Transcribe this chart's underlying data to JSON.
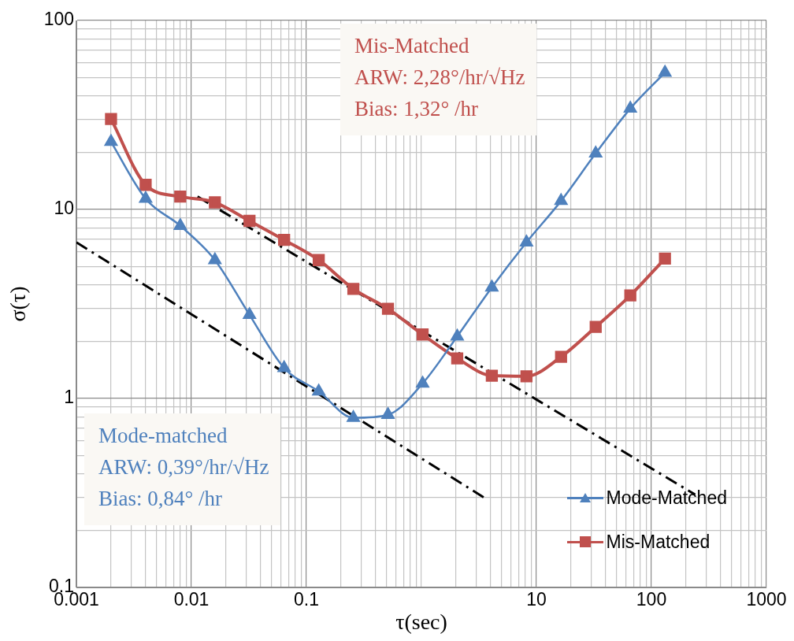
{
  "chart_data": {
    "type": "line",
    "xlabel": "τ(sec)",
    "ylabel": "σ(τ)",
    "log": "xy",
    "grid": true,
    "legend": "bottom right",
    "x": [
      0.002,
      0.004,
      0.008,
      0.016,
      0.032,
      0.064,
      0.128,
      0.256,
      0.512,
      1.024,
      2.048,
      4.096,
      8.192,
      16.38,
      32.77,
      65.54,
      131.1
    ],
    "series": [
      {
        "name": "Mode-Matched",
        "color": "#4f81bd",
        "marker": "triangle",
        "values": [
          22.8,
          11.4,
          8.2,
          5.4,
          2.77,
          1.45,
          1.09,
          0.79,
          0.82,
          1.2,
          2.13,
          3.87,
          6.7,
          11.1,
          19.8,
          34.2,
          53
        ]
      },
      {
        "name": "Mis-Matched",
        "color": "#c0504d",
        "marker": "square",
        "values": [
          30.1,
          13.5,
          11.7,
          10.9,
          8.7,
          6.9,
          5.4,
          3.8,
          2.98,
          2.18,
          1.63,
          1.32,
          1.31,
          1.66,
          2.39,
          3.51,
          5.5
        ]
      },
      {
        "type": "line",
        "color": "#000000",
        "marker": "none",
        "line_style": "dashed",
        "x": [
          0.001,
          3.47
        ],
        "values": [
          6.7,
          0.3
        ]
      },
      {
        "type": "line",
        "color": "#000000",
        "marker": "none",
        "line_style": "dashed",
        "x": [
          0.0113,
          240
        ],
        "values": [
          11.7,
          0.31
        ]
      }
    ],
    "xlim": [
      0.001,
      1000
    ],
    "xticks": [
      0.001,
      {
        "value": 0.002,
        "label": null
      },
      {
        "value": 0.003,
        "label": null
      },
      {
        "value": 0.004,
        "label": null
      },
      {
        "value": 0.005,
        "label": null
      },
      {
        "value": 0.006,
        "label": null
      },
      {
        "value": 0.007,
        "label": null
      },
      {
        "value": 0.008,
        "label": null
      },
      {
        "value": 0.009,
        "label": null
      },
      0.01,
      {
        "value": 0.02,
        "label": null
      },
      {
        "value": 0.03,
        "label": null
      },
      {
        "value": 0.04,
        "label": null
      },
      {
        "value": 0.05,
        "label": null
      },
      {
        "value": 0.06,
        "label": null
      },
      {
        "value": 0.07,
        "label": null
      },
      {
        "value": 0.08,
        "label": null
      },
      {
        "value": 0.09,
        "label": null
      },
      0.1,
      {
        "value": 0.2,
        "label": null
      },
      {
        "value": 0.3,
        "label": null
      },
      {
        "value": 0.4,
        "label": null
      },
      {
        "value": 0.5,
        "label": null
      },
      {
        "value": 0.6,
        "label": null
      },
      {
        "value": 0.7,
        "label": null
      },
      {
        "value": 0.8,
        "label": null
      },
      {
        "value": 0.9,
        "label": null
      },
      {
        "value": 1,
        "label": null
      },
      {
        "value": 2,
        "label": null
      },
      {
        "value": 3,
        "label": null
      },
      {
        "value": 4,
        "label": null
      },
      {
        "value": 5,
        "label": null
      },
      {
        "value": 6,
        "label": null
      },
      {
        "value": 7,
        "label": null
      },
      {
        "value": 8,
        "label": null
      },
      {
        "value": 9,
        "label": null
      },
      10,
      {
        "value": 20,
        "label": null
      },
      {
        "value": 30,
        "label": null
      },
      {
        "value": 40,
        "label": null
      },
      {
        "value": 50,
        "label": null
      },
      {
        "value": 60,
        "label": null
      },
      {
        "value": 70,
        "label": null
      },
      {
        "value": 80,
        "label": null
      },
      {
        "value": 90,
        "label": null
      },
      100,
      {
        "value": 200,
        "label": null
      },
      {
        "value": 300,
        "label": null
      },
      {
        "value": 400,
        "label": null
      },
      {
        "value": 500,
        "label": null
      },
      {
        "value": 600,
        "label": null
      },
      {
        "value": 700,
        "label": null
      },
      {
        "value": 800,
        "label": null
      },
      {
        "value": 900,
        "label": null
      },
      1000
    ],
    "ylim": [
      0.1,
      100
    ],
    "yticks": [
      0.1,
      {
        "value": 0.2,
        "label": null
      },
      {
        "value": 0.3,
        "label": null
      },
      {
        "value": 0.4,
        "label": null
      },
      {
        "value": 0.5,
        "label": null
      },
      {
        "value": 0.6,
        "label": null
      },
      {
        "value": 0.7,
        "label": null
      },
      {
        "value": 0.8,
        "label": null
      },
      {
        "value": 0.9,
        "label": null
      },
      1,
      {
        "value": 2,
        "label": null
      },
      {
        "value": 3,
        "label": null
      },
      {
        "value": 4,
        "label": null
      },
      {
        "value": 5,
        "label": null
      },
      {
        "value": 6,
        "label": null
      },
      {
        "value": 7,
        "label": null
      },
      {
        "value": 8,
        "label": null
      },
      {
        "value": 9,
        "label": null
      },
      10,
      {
        "value": 20,
        "label": null
      },
      {
        "value": 30,
        "label": null
      },
      {
        "value": 40,
        "label": null
      },
      {
        "value": 50,
        "label": null
      },
      {
        "value": 60,
        "label": null
      },
      {
        "value": 70,
        "label": null
      },
      {
        "value": 80,
        "label": null
      },
      {
        "value": 90,
        "label": null
      },
      100
    ],
    "annotations": [
      "Mis-Matched\nARW: 2,28°/hr/√Hz\nBias: 1,32° /hr",
      "Mode-matched\nARW: 0,39°/hr/√Hz\nBias: 0,84° /hr"
    ]
  }
}
